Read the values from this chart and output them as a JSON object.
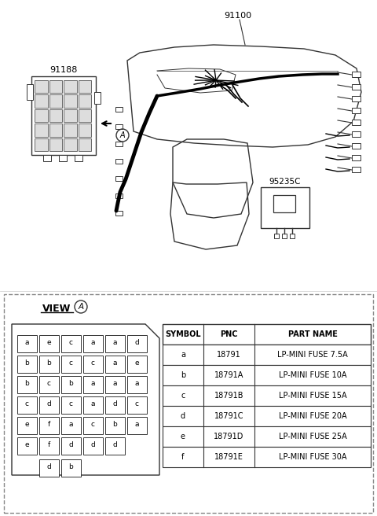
{
  "bg_color": "#ffffff",
  "label_91100": "91100",
  "label_91188": "91188",
  "label_95235C": "95235C",
  "view_label": "VIEW",
  "view_circle_label": "A",
  "circle_A_label": "A",
  "table_headers": [
    "SYMBOL",
    "PNC",
    "PART NAME"
  ],
  "table_rows": [
    [
      "a",
      "18791",
      "LP-MINI FUSE 7.5A"
    ],
    [
      "b",
      "18791A",
      "LP-MINI FUSE 10A"
    ],
    [
      "c",
      "18791B",
      "LP-MINI FUSE 15A"
    ],
    [
      "d",
      "18791C",
      "LP-MINI FUSE 20A"
    ],
    [
      "e",
      "18791D",
      "LP-MINI FUSE 25A"
    ],
    [
      "f",
      "18791E",
      "LP-MINI FUSE 30A"
    ]
  ],
  "fuse_grid": [
    [
      "a",
      "e",
      "c",
      "a",
      "a",
      "d"
    ],
    [
      "b",
      "b",
      "c",
      "c",
      "a",
      "e"
    ],
    [
      "b",
      "c",
      "b",
      "a",
      "a",
      "a"
    ],
    [
      "c",
      "d",
      "c",
      "a",
      "d",
      "c"
    ],
    [
      "e",
      "f",
      "a",
      "c",
      "b",
      "a"
    ],
    [
      "e",
      "f",
      "d",
      "d",
      "d",
      ""
    ]
  ],
  "fuse_bottom": [
    "d",
    "b"
  ],
  "line_color": "#333333",
  "dashed_border_color": "#888888",
  "table_line_color": "#333333"
}
